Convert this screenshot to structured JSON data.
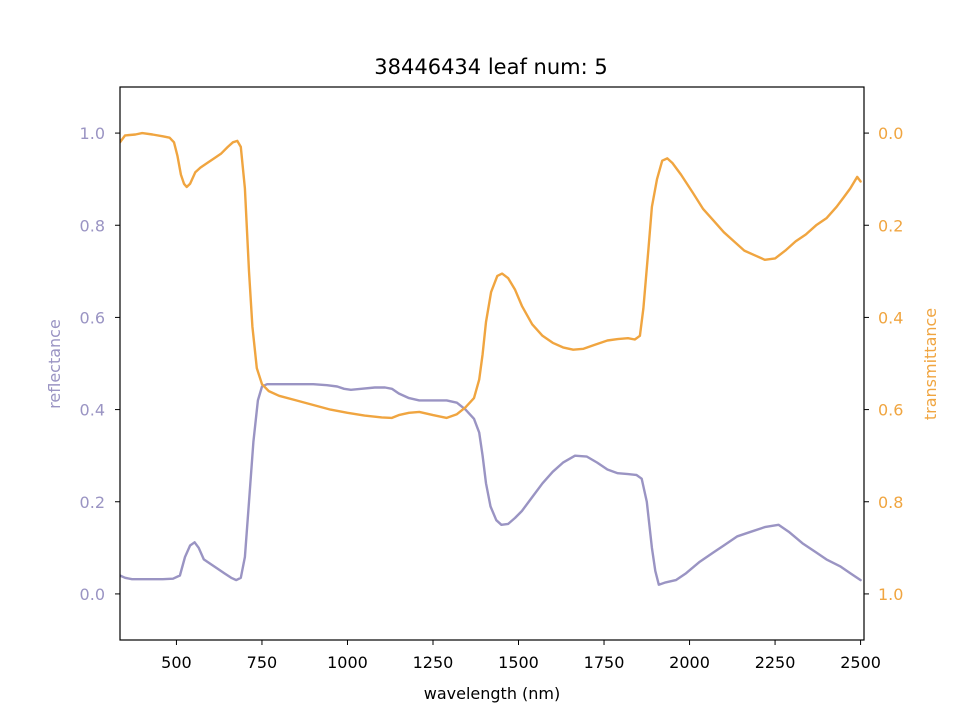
{
  "chart_data": {
    "type": "line",
    "title": "38446434 leaf num: 5",
    "xlabel": "wavelength (nm)",
    "xlim": [
      335,
      2510
    ],
    "xticks": [
      500,
      750,
      1000,
      1250,
      1500,
      1750,
      2000,
      2250,
      2500
    ],
    "grid": false,
    "axes": {
      "left": {
        "label": "reflectance",
        "color": "#9a94c3",
        "ylim": [
          -0.1,
          1.1
        ],
        "ticks": [
          "0.0",
          "0.2",
          "0.4",
          "0.6",
          "0.8",
          "1.0"
        ],
        "tick_values": [
          0.0,
          0.2,
          0.4,
          0.6,
          0.8,
          1.0
        ]
      },
      "right": {
        "label": "transmittance",
        "color": "#f0a540",
        "inverted": true,
        "ylim": [
          1.1,
          -0.1
        ],
        "ticks": [
          "0.0",
          "0.2",
          "0.4",
          "0.6",
          "0.8",
          "1.0"
        ],
        "tick_values": [
          0.0,
          0.2,
          0.4,
          0.6,
          0.8,
          1.0
        ]
      }
    },
    "series": [
      {
        "axis": "left",
        "color": "#9a94c3",
        "points": [
          [
            335,
            0.04
          ],
          [
            350,
            0.035
          ],
          [
            370,
            0.032
          ],
          [
            400,
            0.032
          ],
          [
            430,
            0.032
          ],
          [
            460,
            0.032
          ],
          [
            490,
            0.033
          ],
          [
            510,
            0.04
          ],
          [
            525,
            0.08
          ],
          [
            540,
            0.105
          ],
          [
            553,
            0.112
          ],
          [
            565,
            0.1
          ],
          [
            580,
            0.075
          ],
          [
            600,
            0.065
          ],
          [
            620,
            0.055
          ],
          [
            640,
            0.045
          ],
          [
            660,
            0.035
          ],
          [
            675,
            0.03
          ],
          [
            688,
            0.035
          ],
          [
            700,
            0.08
          ],
          [
            712,
            0.2
          ],
          [
            725,
            0.33
          ],
          [
            738,
            0.42
          ],
          [
            750,
            0.45
          ],
          [
            765,
            0.455
          ],
          [
            800,
            0.455
          ],
          [
            850,
            0.455
          ],
          [
            900,
            0.455
          ],
          [
            940,
            0.453
          ],
          [
            970,
            0.45
          ],
          [
            990,
            0.445
          ],
          [
            1010,
            0.443
          ],
          [
            1040,
            0.445
          ],
          [
            1080,
            0.448
          ],
          [
            1110,
            0.448
          ],
          [
            1130,
            0.445
          ],
          [
            1150,
            0.435
          ],
          [
            1180,
            0.425
          ],
          [
            1210,
            0.42
          ],
          [
            1250,
            0.42
          ],
          [
            1290,
            0.42
          ],
          [
            1320,
            0.415
          ],
          [
            1345,
            0.4
          ],
          [
            1370,
            0.38
          ],
          [
            1385,
            0.35
          ],
          [
            1395,
            0.3
          ],
          [
            1405,
            0.24
          ],
          [
            1418,
            0.19
          ],
          [
            1435,
            0.16
          ],
          [
            1450,
            0.15
          ],
          [
            1470,
            0.152
          ],
          [
            1490,
            0.165
          ],
          [
            1510,
            0.18
          ],
          [
            1540,
            0.21
          ],
          [
            1570,
            0.24
          ],
          [
            1600,
            0.265
          ],
          [
            1630,
            0.285
          ],
          [
            1665,
            0.3
          ],
          [
            1700,
            0.298
          ],
          [
            1730,
            0.285
          ],
          [
            1760,
            0.27
          ],
          [
            1790,
            0.262
          ],
          [
            1820,
            0.26
          ],
          [
            1845,
            0.258
          ],
          [
            1860,
            0.25
          ],
          [
            1875,
            0.2
          ],
          [
            1890,
            0.1
          ],
          [
            1900,
            0.05
          ],
          [
            1910,
            0.02
          ],
          [
            1930,
            0.025
          ],
          [
            1960,
            0.03
          ],
          [
            1990,
            0.045
          ],
          [
            2030,
            0.07
          ],
          [
            2070,
            0.09
          ],
          [
            2100,
            0.105
          ],
          [
            2140,
            0.125
          ],
          [
            2180,
            0.135
          ],
          [
            2220,
            0.145
          ],
          [
            2260,
            0.15
          ],
          [
            2290,
            0.135
          ],
          [
            2330,
            0.11
          ],
          [
            2370,
            0.09
          ],
          [
            2400,
            0.075
          ],
          [
            2440,
            0.06
          ],
          [
            2470,
            0.045
          ],
          [
            2500,
            0.03
          ]
        ]
      },
      {
        "axis": "right",
        "color": "#f0a540",
        "points": [
          [
            335,
            0.02
          ],
          [
            350,
            0.005
          ],
          [
            380,
            0.003
          ],
          [
            400,
            0.0
          ],
          [
            430,
            0.003
          ],
          [
            460,
            0.007
          ],
          [
            480,
            0.01
          ],
          [
            493,
            0.02
          ],
          [
            503,
            0.05
          ],
          [
            513,
            0.09
          ],
          [
            522,
            0.11
          ],
          [
            530,
            0.117
          ],
          [
            540,
            0.11
          ],
          [
            555,
            0.085
          ],
          [
            570,
            0.075
          ],
          [
            590,
            0.065
          ],
          [
            610,
            0.055
          ],
          [
            630,
            0.045
          ],
          [
            650,
            0.03
          ],
          [
            665,
            0.02
          ],
          [
            678,
            0.017
          ],
          [
            688,
            0.03
          ],
          [
            700,
            0.12
          ],
          [
            712,
            0.3
          ],
          [
            722,
            0.42
          ],
          [
            735,
            0.51
          ],
          [
            750,
            0.545
          ],
          [
            770,
            0.56
          ],
          [
            800,
            0.57
          ],
          [
            850,
            0.58
          ],
          [
            900,
            0.59
          ],
          [
            950,
            0.6
          ],
          [
            1000,
            0.607
          ],
          [
            1050,
            0.613
          ],
          [
            1100,
            0.617
          ],
          [
            1130,
            0.618
          ],
          [
            1150,
            0.612
          ],
          [
            1180,
            0.607
          ],
          [
            1210,
            0.605
          ],
          [
            1250,
            0.612
          ],
          [
            1290,
            0.618
          ],
          [
            1320,
            0.61
          ],
          [
            1345,
            0.595
          ],
          [
            1370,
            0.575
          ],
          [
            1385,
            0.535
          ],
          [
            1395,
            0.48
          ],
          [
            1405,
            0.41
          ],
          [
            1420,
            0.345
          ],
          [
            1438,
            0.31
          ],
          [
            1452,
            0.305
          ],
          [
            1470,
            0.315
          ],
          [
            1490,
            0.34
          ],
          [
            1510,
            0.375
          ],
          [
            1540,
            0.415
          ],
          [
            1570,
            0.44
          ],
          [
            1600,
            0.455
          ],
          [
            1630,
            0.465
          ],
          [
            1660,
            0.47
          ],
          [
            1690,
            0.468
          ],
          [
            1720,
            0.46
          ],
          [
            1760,
            0.45
          ],
          [
            1790,
            0.447
          ],
          [
            1820,
            0.445
          ],
          [
            1840,
            0.448
          ],
          [
            1855,
            0.44
          ],
          [
            1865,
            0.38
          ],
          [
            1880,
            0.25
          ],
          [
            1890,
            0.16
          ],
          [
            1905,
            0.1
          ],
          [
            1920,
            0.06
          ],
          [
            1935,
            0.055
          ],
          [
            1950,
            0.065
          ],
          [
            1975,
            0.09
          ],
          [
            2010,
            0.13
          ],
          [
            2040,
            0.165
          ],
          [
            2070,
            0.19
          ],
          [
            2100,
            0.215
          ],
          [
            2130,
            0.235
          ],
          [
            2160,
            0.255
          ],
          [
            2190,
            0.265
          ],
          [
            2220,
            0.275
          ],
          [
            2250,
            0.272
          ],
          [
            2280,
            0.255
          ],
          [
            2310,
            0.235
          ],
          [
            2340,
            0.22
          ],
          [
            2370,
            0.2
          ],
          [
            2400,
            0.185
          ],
          [
            2430,
            0.16
          ],
          [
            2450,
            0.14
          ],
          [
            2470,
            0.12
          ],
          [
            2490,
            0.095
          ],
          [
            2500,
            0.105
          ]
        ]
      }
    ]
  }
}
